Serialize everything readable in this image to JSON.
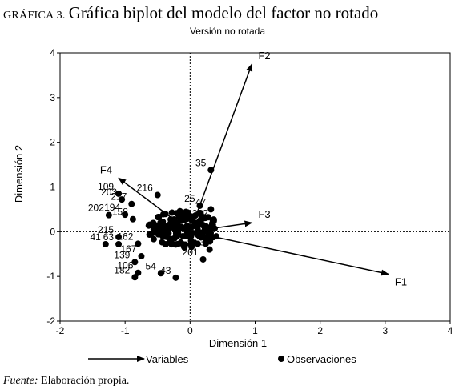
{
  "heading": {
    "prefix": "GRÁFICA 3.",
    "title": "Gráfica biplot del modelo del factor no rotado"
  },
  "subtitle": "Versión no rotada",
  "source": {
    "label": "Fuente:",
    "text": "Elaboración propia."
  },
  "chart_data": {
    "type": "scatter",
    "subtitle": "Versión no rotada",
    "xlabel": "Dimensión 1",
    "ylabel": "Dimensión 2",
    "xlim": [
      -2,
      4
    ],
    "ylim": [
      -2,
      4
    ],
    "xticks": [
      -2,
      -1,
      0,
      1,
      2,
      3,
      4
    ],
    "yticks": [
      -2,
      -1,
      0,
      1,
      2,
      3,
      4
    ],
    "grid": false,
    "legend_position": "bottom",
    "legend": {
      "variables": "Variables",
      "observaciones": "Observaciones"
    },
    "variables": [
      {
        "name": "F1",
        "x": 3.05,
        "y": -0.95
      },
      {
        "name": "F2",
        "x": 0.95,
        "y": 3.75
      },
      {
        "name": "F3",
        "x": 0.95,
        "y": 0.2
      },
      {
        "name": "F4",
        "x": -1.1,
        "y": 1.2
      }
    ],
    "observations": [
      {
        "label": "35",
        "x": 0.32,
        "y": 1.38
      },
      {
        "label": "109",
        "x": -1.1,
        "y": 0.85
      },
      {
        "label": "216",
        "x": -0.5,
        "y": 0.82
      },
      {
        "label": "203",
        "x": -1.05,
        "y": 0.72
      },
      {
        "label": "217",
        "x": -0.9,
        "y": 0.62
      },
      {
        "label": "25",
        "x": 0.15,
        "y": 0.58
      },
      {
        "label": "47",
        "x": 0.32,
        "y": 0.5
      },
      {
        "label": "202",
        "x": -1.25,
        "y": 0.37
      },
      {
        "label": "194",
        "x": -1.0,
        "y": 0.38
      },
      {
        "label": "158",
        "x": -0.88,
        "y": 0.28
      },
      {
        "label": "202",
        "x": 0.35,
        "y": 0.25
      },
      {
        "label": "46",
        "x": 0.35,
        "y": 0.15
      },
      {
        "label": "215",
        "x": -1.1,
        "y": -0.12
      },
      {
        "label": "41",
        "x": -1.3,
        "y": -0.28
      },
      {
        "label": "63",
        "x": -1.1,
        "y": -0.28
      },
      {
        "label": "162",
        "x": -0.8,
        "y": -0.27
      },
      {
        "label": "167",
        "x": -0.75,
        "y": -0.55
      },
      {
        "label": "139",
        "x": -0.85,
        "y": -0.68
      },
      {
        "label": "153",
        "x": 0.3,
        "y": -0.4
      },
      {
        "label": "201",
        "x": 0.2,
        "y": -0.62
      },
      {
        "label": "106",
        "x": -0.8,
        "y": -0.92
      },
      {
        "label": "182",
        "x": -0.85,
        "y": -1.02
      },
      {
        "label": "54",
        "x": -0.45,
        "y": -0.93
      },
      {
        "label": "43",
        "x": -0.22,
        "y": -1.03
      }
    ]
  }
}
